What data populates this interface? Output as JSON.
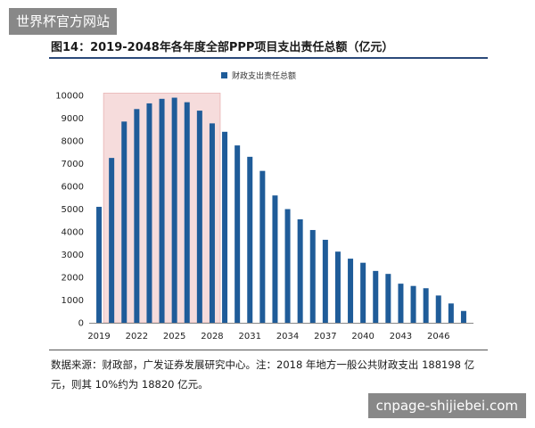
{
  "watermark_top": "世界杯官方网站",
  "watermark_bottom": "cnpage-shijiebei.com",
  "figure_title": "图14：2019-2048年各年度全部PPP项目支出责任总额（亿元）",
  "source_note": "数据来源：财政部，广发证券发展研究中心。注：2018 年地方一般公共财政支出 188198 亿元，则其 10%约为 18820 亿元。",
  "colors": {
    "bar": "#1f5c99",
    "highlight": "#f6dcdc",
    "highlight_border": "#e8b4b4"
  },
  "chart_data": {
    "type": "bar",
    "title": "",
    "xlabel": "",
    "ylabel": "",
    "legend": [
      "财政支出责任总额"
    ],
    "legend_position": "top-center",
    "grid": false,
    "ylim": [
      0,
      10000
    ],
    "yticks": [
      "0",
      "1000",
      "2000",
      "3000",
      "4000",
      "5000",
      "6000",
      "7000",
      "8000",
      "9000",
      "10000"
    ],
    "xtick_labels": [
      "2019",
      "2022",
      "2025",
      "2028",
      "2031",
      "2034",
      "2037",
      "2040",
      "2043",
      "2046"
    ],
    "categories": [
      "2019",
      "2020",
      "2021",
      "2022",
      "2023",
      "2024",
      "2025",
      "2026",
      "2027",
      "2028",
      "2029",
      "2030",
      "2031",
      "2032",
      "2033",
      "2034",
      "2035",
      "2036",
      "2037",
      "2038",
      "2039",
      "2040",
      "2041",
      "2042",
      "2043",
      "2044",
      "2045",
      "2046",
      "2047",
      "2048"
    ],
    "series": [
      {
        "name": "财政支出责任总额",
        "values": [
          5100,
          7250,
          8850,
          9400,
          9650,
          9850,
          9900,
          9700,
          9330,
          8770,
          8400,
          7800,
          7300,
          6680,
          5600,
          5000,
          4550,
          4080,
          3650,
          3130,
          2820,
          2640,
          2280,
          2150,
          1720,
          1620,
          1520,
          1200,
          850,
          520
        ]
      }
    ],
    "highlight_range": [
      "2020",
      "2028"
    ]
  }
}
